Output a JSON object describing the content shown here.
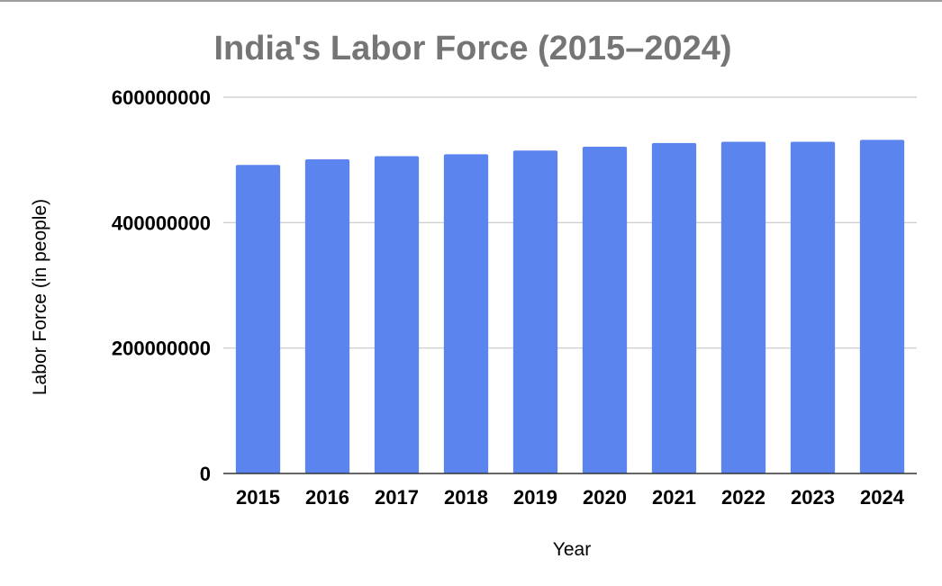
{
  "chart_data": {
    "type": "bar",
    "title": "India's Labor Force (2015–2024)",
    "xlabel": "Year",
    "ylabel": "Labor Force (in people)",
    "categories": [
      "2015",
      "2016",
      "2017",
      "2018",
      "2019",
      "2020",
      "2021",
      "2022",
      "2023",
      "2024"
    ],
    "values": [
      492000000,
      501000000,
      506000000,
      509000000,
      515000000,
      521000000,
      527000000,
      529000000,
      529000000,
      532000000
    ],
    "ylim": [
      0,
      600000000
    ],
    "yticks": [
      {
        "value": 0,
        "label": "0"
      },
      {
        "value": 200000000,
        "label": "200000000"
      },
      {
        "value": 400000000,
        "label": "400000000"
      },
      {
        "value": 600000000,
        "label": "600000000"
      }
    ],
    "grid": true,
    "legend": "none",
    "bar_color": "#5b84ef",
    "title_color": "#757575"
  }
}
